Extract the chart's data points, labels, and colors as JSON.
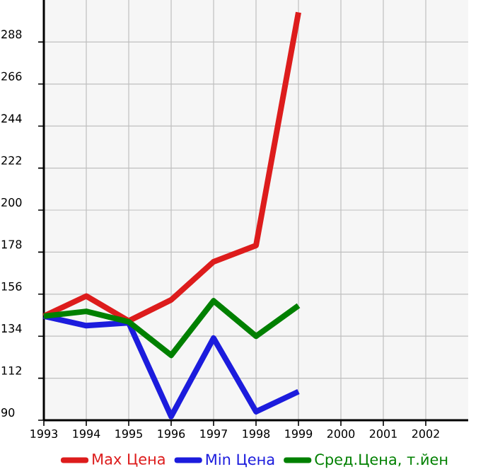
{
  "chart_data": {
    "type": "line",
    "x": [
      1993,
      1994,
      1995,
      1996,
      1997,
      1998,
      1999
    ],
    "series": [
      {
        "name": "Max Цена",
        "color": "#dd1c1c",
        "values": [
          144.5,
          155,
          142,
          153,
          173,
          181.5,
          303.5
        ]
      },
      {
        "name": "Min Цена",
        "color": "#1c1cdd",
        "values": [
          144.5,
          139.5,
          141,
          92,
          133,
          94.5,
          105
        ]
      },
      {
        "name": "Сред.Цена, т.йен",
        "color": "#008000",
        "values": [
          144.5,
          147,
          141.5,
          124,
          152.5,
          134,
          150
        ]
      }
    ],
    "xlim": [
      1993,
      2003
    ],
    "xticks": [
      1993,
      1994,
      1995,
      1996,
      1997,
      1998,
      1999,
      2000,
      2001,
      2002
    ],
    "ylim": [
      90,
      310
    ],
    "yticks": [
      90,
      112,
      134,
      156,
      178,
      200,
      222,
      244,
      266,
      288
    ],
    "grid": true,
    "legend": "bottom",
    "marker": "none",
    "line_style": "solid"
  }
}
